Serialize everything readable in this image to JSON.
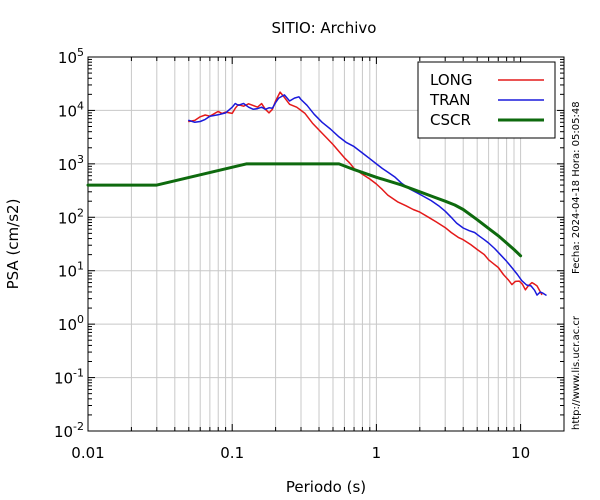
{
  "side_text": {
    "fecha_label": "Fecha:",
    "fecha": "2024-04-18",
    "hora_label": "Hora:",
    "hora": "05:05:48",
    "url": "http://www.lis.ucr.ac.cr"
  },
  "chart_data": {
    "type": "line",
    "title": "SITIO: Archivo",
    "xlabel": "Periodo (s)",
    "ylabel": "PSA (cm/s2)",
    "xscale": "log",
    "yscale": "log",
    "xlim": [
      0.01,
      20
    ],
    "ylim": [
      0.01,
      100000
    ],
    "grid": true,
    "legend_position": "top-right",
    "xticks": [
      {
        "value": 0.01,
        "label": "0.01"
      },
      {
        "value": 0.1,
        "label": "0.1"
      },
      {
        "value": 1,
        "label": "1"
      },
      {
        "value": 10,
        "label": "10"
      }
    ],
    "yticks": [
      {
        "value": 100000,
        "base": "10",
        "exp": "5"
      },
      {
        "value": 10000,
        "base": "10",
        "exp": "4"
      },
      {
        "value": 1000,
        "base": "10",
        "exp": "3"
      },
      {
        "value": 100,
        "base": "10",
        "exp": "2"
      },
      {
        "value": 10,
        "base": "10",
        "exp": "1"
      },
      {
        "value": 1,
        "base": "10",
        "exp": "0"
      },
      {
        "value": 0.1,
        "base": "10",
        "exp": "-1"
      },
      {
        "value": 0.01,
        "base": "10",
        "exp": "-2"
      }
    ],
    "series": [
      {
        "name": "LONG",
        "color": "#e41a1a",
        "width": 1.5,
        "points": [
          [
            0.05,
            6200
          ],
          [
            0.055,
            6500
          ],
          [
            0.06,
            7600
          ],
          [
            0.065,
            8200
          ],
          [
            0.07,
            7800
          ],
          [
            0.08,
            9600
          ],
          [
            0.085,
            8800
          ],
          [
            0.09,
            9300
          ],
          [
            0.1,
            8800
          ],
          [
            0.105,
            11000
          ],
          [
            0.11,
            12800
          ],
          [
            0.12,
            12000
          ],
          [
            0.13,
            13300
          ],
          [
            0.15,
            11500
          ],
          [
            0.16,
            13400
          ],
          [
            0.17,
            10500
          ],
          [
            0.18,
            9000
          ],
          [
            0.19,
            10500
          ],
          [
            0.2,
            15000
          ],
          [
            0.215,
            22000
          ],
          [
            0.23,
            17500
          ],
          [
            0.25,
            13000
          ],
          [
            0.28,
            11500
          ],
          [
            0.32,
            8800
          ],
          [
            0.36,
            5800
          ],
          [
            0.4,
            4300
          ],
          [
            0.45,
            3100
          ],
          [
            0.5,
            2300
          ],
          [
            0.55,
            1700
          ],
          [
            0.6,
            1300
          ],
          [
            0.65,
            1050
          ],
          [
            0.7,
            820
          ],
          [
            0.8,
            640
          ],
          [
            0.9,
            520
          ],
          [
            1.0,
            420
          ],
          [
            1.1,
            330
          ],
          [
            1.2,
            260
          ],
          [
            1.4,
            195
          ],
          [
            1.6,
            165
          ],
          [
            1.8,
            140
          ],
          [
            2.0,
            125
          ],
          [
            2.3,
            100
          ],
          [
            2.6,
            82
          ],
          [
            3.0,
            64
          ],
          [
            3.3,
            52
          ],
          [
            3.7,
            42
          ],
          [
            4.0,
            38
          ],
          [
            4.5,
            31
          ],
          [
            5.0,
            25
          ],
          [
            5.6,
            20
          ],
          [
            6.0,
            16
          ],
          [
            6.5,
            13.5
          ],
          [
            7.0,
            11.5
          ],
          [
            7.6,
            8.5
          ],
          [
            8.2,
            6.8
          ],
          [
            8.7,
            5.5
          ],
          [
            9.2,
            6.3
          ],
          [
            9.8,
            6.4
          ],
          [
            10.3,
            5.6
          ],
          [
            10.8,
            4.4
          ],
          [
            11.3,
            5.2
          ],
          [
            12.0,
            6.0
          ],
          [
            12.5,
            5.6
          ],
          [
            13.0,
            5.2
          ],
          [
            14.0,
            3.6
          ]
        ]
      },
      {
        "name": "TRAN",
        "color": "#1a1adc",
        "width": 1.5,
        "points": [
          [
            0.05,
            6500
          ],
          [
            0.055,
            6000
          ],
          [
            0.06,
            6200
          ],
          [
            0.065,
            6800
          ],
          [
            0.07,
            7800
          ],
          [
            0.08,
            8300
          ],
          [
            0.09,
            9000
          ],
          [
            0.1,
            11500
          ],
          [
            0.105,
            13500
          ],
          [
            0.11,
            12500
          ],
          [
            0.12,
            13500
          ],
          [
            0.13,
            11500
          ],
          [
            0.14,
            10500
          ],
          [
            0.15,
            10800
          ],
          [
            0.16,
            11500
          ],
          [
            0.17,
            10500
          ],
          [
            0.18,
            11200
          ],
          [
            0.19,
            11000
          ],
          [
            0.2,
            14000
          ],
          [
            0.21,
            17000
          ],
          [
            0.23,
            19500
          ],
          [
            0.25,
            15000
          ],
          [
            0.27,
            17000
          ],
          [
            0.29,
            18000
          ],
          [
            0.3,
            16000
          ],
          [
            0.33,
            12500
          ],
          [
            0.37,
            8500
          ],
          [
            0.42,
            6000
          ],
          [
            0.48,
            4500
          ],
          [
            0.55,
            3200
          ],
          [
            0.62,
            2500
          ],
          [
            0.7,
            2100
          ],
          [
            0.8,
            1600
          ],
          [
            0.9,
            1250
          ],
          [
            1.0,
            1000
          ],
          [
            1.1,
            820
          ],
          [
            1.2,
            700
          ],
          [
            1.35,
            560
          ],
          [
            1.5,
            430
          ],
          [
            1.7,
            340
          ],
          [
            1.9,
            290
          ],
          [
            2.1,
            250
          ],
          [
            2.4,
            205
          ],
          [
            2.7,
            165
          ],
          [
            3.0,
            130
          ],
          [
            3.3,
            100
          ],
          [
            3.6,
            78
          ],
          [
            4.0,
            63
          ],
          [
            4.4,
            56
          ],
          [
            4.8,
            52
          ],
          [
            5.2,
            44
          ],
          [
            5.6,
            38
          ],
          [
            6.0,
            33
          ],
          [
            6.6,
            26
          ],
          [
            7.3,
            19.5
          ],
          [
            8.0,
            15
          ],
          [
            8.8,
            11
          ],
          [
            9.5,
            8.5
          ],
          [
            10.2,
            6.5
          ],
          [
            11.0,
            5.4
          ],
          [
            11.8,
            5.2
          ],
          [
            12.5,
            4.3
          ],
          [
            13.0,
            3.5
          ],
          [
            13.7,
            4.0
          ],
          [
            14.3,
            3.8
          ],
          [
            15.0,
            3.5
          ]
        ]
      },
      {
        "name": "CSCR",
        "color": "#0e6a0e",
        "width": 3,
        "points": [
          [
            0.01,
            400
          ],
          [
            0.03,
            400
          ],
          [
            0.125,
            1000
          ],
          [
            0.55,
            1000
          ],
          [
            0.7,
            780
          ],
          [
            1.0,
            560
          ],
          [
            1.5,
            400
          ],
          [
            2.0,
            300
          ],
          [
            2.5,
            240
          ],
          [
            3.0,
            200
          ],
          [
            3.5,
            170
          ],
          [
            4.0,
            140
          ],
          [
            5.0,
            90
          ],
          [
            6.0,
            62
          ],
          [
            7.0,
            45
          ],
          [
            8.0,
            33
          ],
          [
            9.0,
            25
          ],
          [
            10.0,
            19
          ]
        ]
      }
    ]
  }
}
